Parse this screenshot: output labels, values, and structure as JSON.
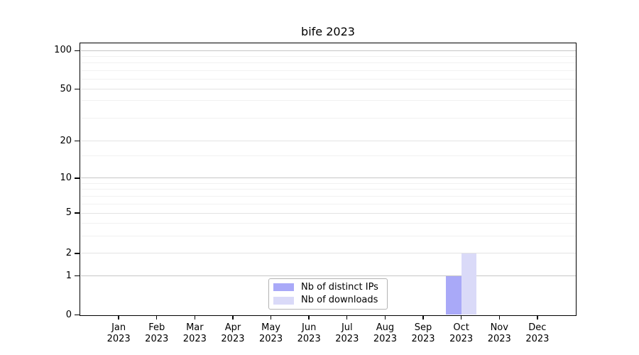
{
  "title": "bife 2023",
  "chart_data": {
    "type": "bar",
    "title": "bife 2023",
    "categories": [
      {
        "month": "Jan",
        "year": "2023"
      },
      {
        "month": "Feb",
        "year": "2023"
      },
      {
        "month": "Mar",
        "year": "2023"
      },
      {
        "month": "Apr",
        "year": "2023"
      },
      {
        "month": "May",
        "year": "2023"
      },
      {
        "month": "Jun",
        "year": "2023"
      },
      {
        "month": "Jul",
        "year": "2023"
      },
      {
        "month": "Aug",
        "year": "2023"
      },
      {
        "month": "Sep",
        "year": "2023"
      },
      {
        "month": "Oct",
        "year": "2023"
      },
      {
        "month": "Nov",
        "year": "2023"
      },
      {
        "month": "Dec",
        "year": "2023"
      }
    ],
    "series": [
      {
        "name": "Nb of distinct IPs",
        "color": "#a9a9f8",
        "values": [
          0,
          0,
          0,
          0,
          0,
          0,
          0,
          0,
          0,
          1,
          0,
          0
        ]
      },
      {
        "name": "Nb of downloads",
        "color": "#dadaf8",
        "values": [
          0,
          0,
          0,
          0,
          0,
          0,
          0,
          0,
          0,
          2,
          0,
          0
        ]
      }
    ],
    "xlabel": "",
    "ylabel": "",
    "ylim": [
      0,
      110
    ],
    "yticks_labeled": [
      100,
      50,
      20,
      10,
      5,
      2,
      1,
      0
    ],
    "grid": "horizontal major+minor, log-style",
    "legend_position": "inside bottom-center",
    "scale": "symlog-like (linear 0-1, log above 1)",
    "scale_anchors": [
      {
        "v": 100,
        "f": 0.0254,
        "tier": "decade"
      },
      {
        "v": 90,
        "f": 0.0471,
        "tier": "minor"
      },
      {
        "v": 80,
        "f": 0.0714,
        "tier": "minor"
      },
      {
        "v": 70,
        "f": 0.0993,
        "tier": "minor"
      },
      {
        "v": 60,
        "f": 0.1315,
        "tier": "minor"
      },
      {
        "v": 50,
        "f": 0.1681,
        "tier": "labeled"
      },
      {
        "v": 40,
        "f": 0.2105,
        "tier": "minor"
      },
      {
        "v": 30,
        "f": 0.2745,
        "tier": "minor"
      },
      {
        "v": 20,
        "f": 0.359,
        "tier": "labeled"
      },
      {
        "v": 15,
        "f": 0.4149,
        "tier": "minor"
      },
      {
        "v": 10,
        "f": 0.4959,
        "tier": "decade"
      },
      {
        "v": 9,
        "f": 0.5158,
        "tier": "minor"
      },
      {
        "v": 8,
        "f": 0.5367,
        "tier": "minor"
      },
      {
        "v": 7,
        "f": 0.5621,
        "tier": "minor"
      },
      {
        "v": 6,
        "f": 0.5908,
        "tier": "minor"
      },
      {
        "v": 5,
        "f": 0.6248,
        "tier": "labeled"
      },
      {
        "v": 4,
        "f": 0.6632,
        "tier": "minor"
      },
      {
        "v": 3,
        "f": 0.7085,
        "tier": "minor"
      },
      {
        "v": 2,
        "f": 0.7731,
        "tier": "labeled"
      },
      {
        "v": 1,
        "f": 0.8562,
        "tier": "decade"
      },
      {
        "v": 0,
        "f": 1.0,
        "tier": "axis"
      }
    ]
  },
  "colors": {
    "background": "#ffffff",
    "axis": "#000000",
    "text": "#000000",
    "grid_decade": "#c6c6c6",
    "grid_labeled": "#e3e3e3",
    "grid_minor": "#f1f1f1",
    "legend_border": "#b3b3b3",
    "bar_distinct_ips": "#a9a9f8",
    "bar_downloads": "#dadaf8"
  }
}
